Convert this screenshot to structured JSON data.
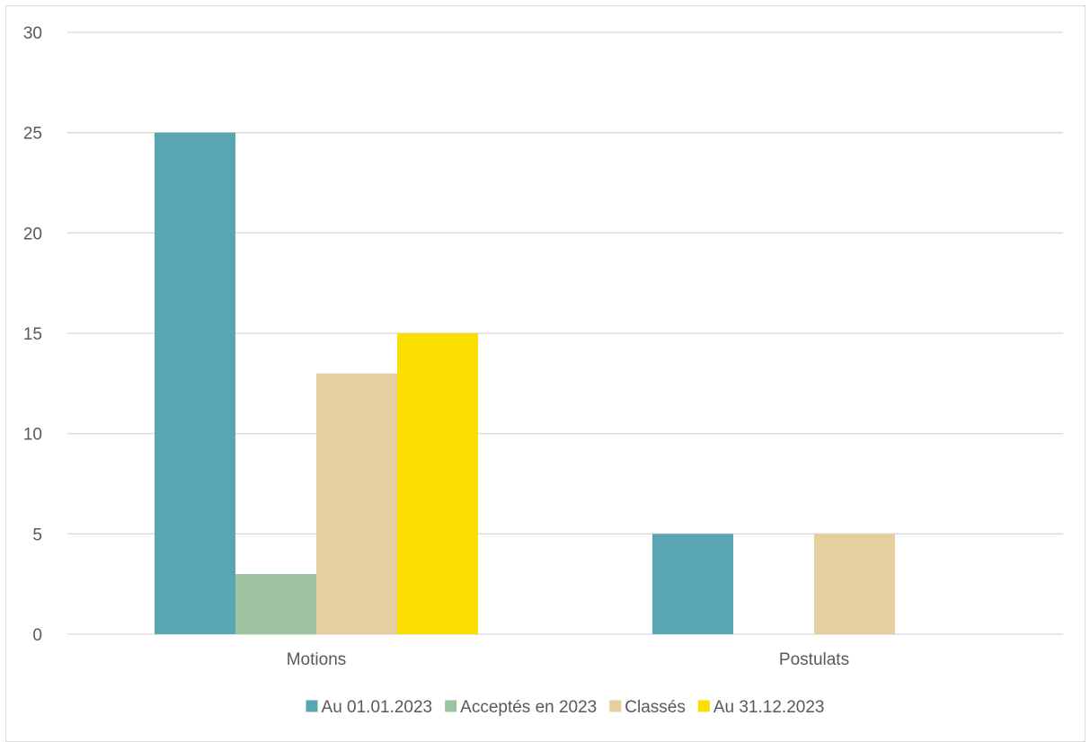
{
  "chart_data": {
    "type": "bar",
    "categories": [
      "Motions",
      "Postulats"
    ],
    "series": [
      {
        "name": "Au 01.01.2023",
        "color": "#59a5b1",
        "values": [
          25,
          5
        ]
      },
      {
        "name": "Acceptés en 2023",
        "color": "#9dc3a0",
        "values": [
          3,
          0
        ]
      },
      {
        "name": "Classés",
        "color": "#e6cf9f",
        "values": [
          13,
          5
        ]
      },
      {
        "name": "Au 31.12.2023",
        "color": "#fbdf00",
        "values": [
          15,
          0
        ]
      }
    ],
    "ylim": [
      0,
      30
    ],
    "yticks": [
      0,
      5,
      10,
      15,
      20,
      25,
      30
    ],
    "grid": true,
    "legend": "bottom",
    "title": "",
    "xlabel": "",
    "ylabel": ""
  }
}
